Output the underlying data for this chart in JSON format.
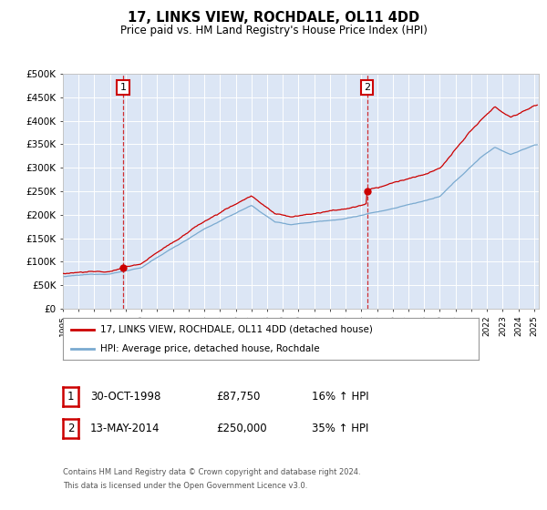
{
  "title": "17, LINKS VIEW, ROCHDALE, OL11 4DD",
  "subtitle": "Price paid vs. HM Land Registry's House Price Index (HPI)",
  "bg_color": "#dce6f5",
  "red_color": "#cc0000",
  "blue_color": "#7aaad0",
  "purchase1_date": 1998.83,
  "purchase1_price": 87750,
  "purchase2_date": 2014.37,
  "purchase2_price": 250000,
  "legend_entry1": "17, LINKS VIEW, ROCHDALE, OL11 4DD (detached house)",
  "legend_entry2": "HPI: Average price, detached house, Rochdale",
  "table_row1_date": "30-OCT-1998",
  "table_row1_price": "£87,750",
  "table_row1_hpi": "16% ↑ HPI",
  "table_row2_date": "13-MAY-2014",
  "table_row2_price": "£250,000",
  "table_row2_hpi": "35% ↑ HPI",
  "footer_line1": "Contains HM Land Registry data © Crown copyright and database right 2024.",
  "footer_line2": "This data is licensed under the Open Government Licence v3.0.",
  "ylim_min": 0,
  "ylim_max": 500000,
  "ytick_vals": [
    0,
    50000,
    100000,
    150000,
    200000,
    250000,
    300000,
    350000,
    400000,
    450000,
    500000
  ],
  "ytick_labels": [
    "£0",
    "£50K",
    "£100K",
    "£150K",
    "£200K",
    "£250K",
    "£300K",
    "£350K",
    "£400K",
    "£450K",
    "£500K"
  ],
  "xmin": 1995,
  "xmax": 2025.3
}
